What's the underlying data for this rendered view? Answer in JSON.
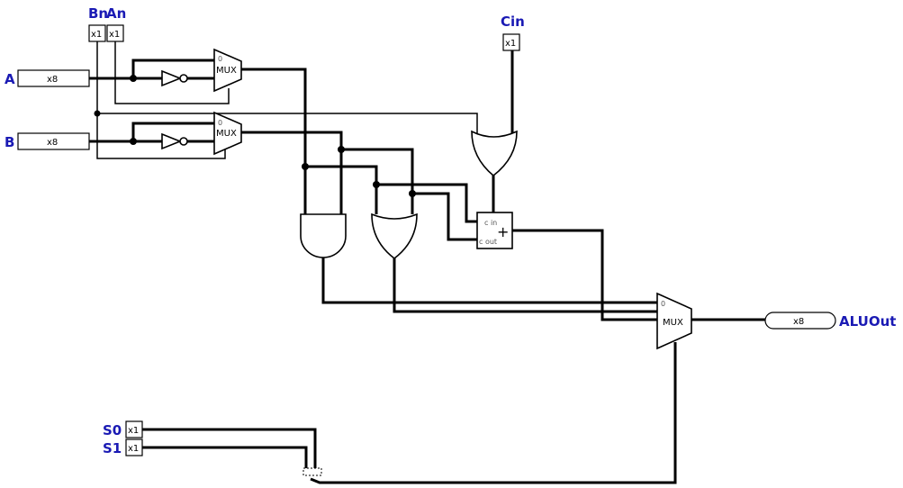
{
  "pins": {
    "a": {
      "name": "A",
      "width": "x8"
    },
    "b": {
      "name": "B",
      "width": "x8"
    },
    "bn": {
      "name": "Bn",
      "width": "x1"
    },
    "an": {
      "name": "An",
      "width": "x1"
    },
    "cin": {
      "name": "Cin",
      "width": "x1"
    },
    "s0": {
      "name": "S0",
      "width": "x1"
    },
    "s1": {
      "name": "S1",
      "width": "x1"
    },
    "out": {
      "name": "ALUOut",
      "width": "x8"
    }
  },
  "components": {
    "mux_label": "MUX",
    "mux_in0": "0",
    "adder_cin": "c in",
    "adder_cout": "c out",
    "adder_plus": "+"
  }
}
